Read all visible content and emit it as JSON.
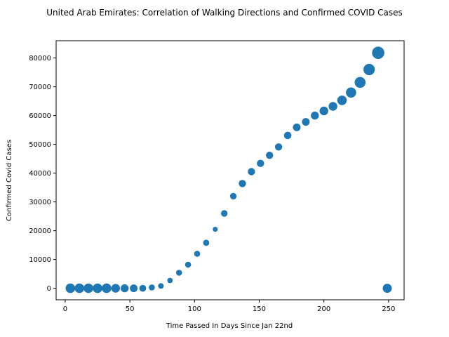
{
  "chart_data": {
    "type": "scatter",
    "title": "United Arab Emirates: Correlation of Walking Directions and Confirmed COVID Cases",
    "xlabel": "Time Passed In Days Since Jan 22nd",
    "ylabel": "Confirmed Covid Cases",
    "xlim": [
      -7,
      262
    ],
    "ylim": [
      -4000,
      86000
    ],
    "xticks": [
      0,
      50,
      100,
      150,
      200,
      250
    ],
    "yticks": [
      0,
      10000,
      20000,
      30000,
      40000,
      50000,
      60000,
      70000,
      80000
    ],
    "grid": false,
    "marker_color": "#1f77b4",
    "points": [
      {
        "x": 4,
        "y": 0,
        "size": 1.05
      },
      {
        "x": 11,
        "y": 0,
        "size": 1.05
      },
      {
        "x": 18,
        "y": 0,
        "size": 1.05
      },
      {
        "x": 25,
        "y": 0,
        "size": 1.05
      },
      {
        "x": 32,
        "y": 0,
        "size": 1.05
      },
      {
        "x": 39,
        "y": 0,
        "size": 0.95
      },
      {
        "x": 46,
        "y": 0,
        "size": 0.88
      },
      {
        "x": 53,
        "y": 0,
        "size": 0.85
      },
      {
        "x": 60,
        "y": 0,
        "size": 0.75
      },
      {
        "x": 67,
        "y": 300,
        "size": 0.66
      },
      {
        "x": 74,
        "y": 800,
        "size": 0.62
      },
      {
        "x": 81,
        "y": 2700,
        "size": 0.6
      },
      {
        "x": 88,
        "y": 5400,
        "size": 0.66
      },
      {
        "x": 95,
        "y": 8200,
        "size": 0.66
      },
      {
        "x": 102,
        "y": 12000,
        "size": 0.66
      },
      {
        "x": 109,
        "y": 15800,
        "size": 0.68
      },
      {
        "x": 116,
        "y": 20500,
        "size": 0.55
      },
      {
        "x": 123,
        "y": 26000,
        "size": 0.72
      },
      {
        "x": 130,
        "y": 32000,
        "size": 0.72
      },
      {
        "x": 137,
        "y": 36400,
        "size": 0.8
      },
      {
        "x": 144,
        "y": 40500,
        "size": 0.8
      },
      {
        "x": 151,
        "y": 43400,
        "size": 0.8
      },
      {
        "x": 158,
        "y": 46200,
        "size": 0.8
      },
      {
        "x": 165,
        "y": 49100,
        "size": 0.8
      },
      {
        "x": 172,
        "y": 53100,
        "size": 0.82
      },
      {
        "x": 179,
        "y": 55900,
        "size": 0.85
      },
      {
        "x": 186,
        "y": 57800,
        "size": 0.85
      },
      {
        "x": 193,
        "y": 60000,
        "size": 0.88
      },
      {
        "x": 200,
        "y": 61600,
        "size": 0.95
      },
      {
        "x": 207,
        "y": 63200,
        "size": 0.95
      },
      {
        "x": 214,
        "y": 65300,
        "size": 1.05
      },
      {
        "x": 221,
        "y": 68000,
        "size": 1.12
      },
      {
        "x": 228,
        "y": 71500,
        "size": 1.2
      },
      {
        "x": 235,
        "y": 76000,
        "size": 1.25
      },
      {
        "x": 242,
        "y": 81800,
        "size": 1.35
      },
      {
        "x": 249,
        "y": 0,
        "size": 1.0
      }
    ]
  }
}
